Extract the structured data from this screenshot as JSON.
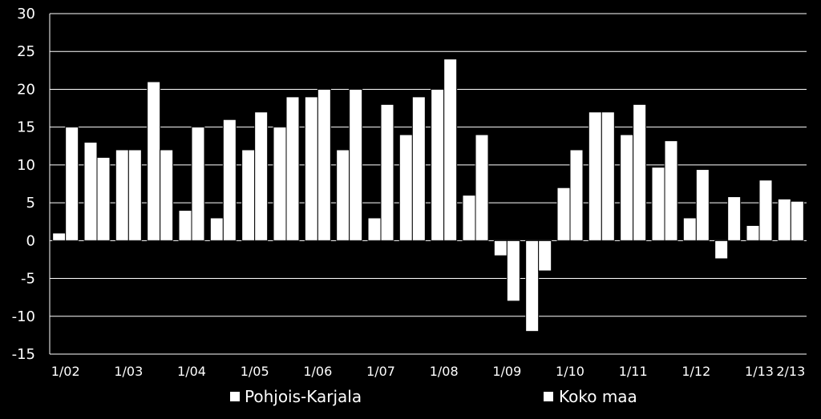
{
  "chart_data": {
    "type": "bar",
    "title": "",
    "xlabel": "",
    "ylabel": "",
    "ylim": [
      -15,
      30
    ],
    "yticks": [
      30,
      25,
      20,
      15,
      10,
      5,
      0,
      -5,
      -10,
      -15
    ],
    "grid": true,
    "legend_position": "bottom",
    "x_tick_labels": [
      "1/02",
      "1/03",
      "1/04",
      "1/05",
      "1/06",
      "1/07",
      "1/08",
      "1/09",
      "1/10",
      "1/11",
      "1/12",
      "1/13",
      "2/13"
    ],
    "categories": [
      "1/02",
      "",
      "1/03",
      "",
      "1/04",
      "",
      "1/05",
      "",
      "1/06",
      "",
      "1/07",
      "",
      "1/08",
      "",
      "1/09",
      "",
      "1/10",
      "",
      "1/11",
      "",
      "1/12",
      "",
      "1/13",
      "2/13"
    ],
    "series": [
      {
        "name": "Pohjois-Karjala",
        "values": [
          1,
          13,
          12,
          21,
          4,
          3,
          12,
          15,
          19,
          12,
          3,
          14,
          20,
          6,
          -2,
          -12,
          7,
          17,
          14,
          9.7,
          3,
          -2.4,
          2,
          5.5
        ]
      },
      {
        "name": "Koko maa",
        "values": [
          15,
          11,
          12,
          12,
          15,
          16,
          17,
          19,
          20,
          20,
          18,
          19,
          24,
          14,
          -8,
          -4,
          12,
          17,
          18,
          13.2,
          9.4,
          5.8,
          8,
          5.2
        ]
      }
    ]
  },
  "colors": {
    "background": "#000000",
    "bar": "#ffffff",
    "grid": "#ffffff",
    "text": "#ffffff"
  }
}
